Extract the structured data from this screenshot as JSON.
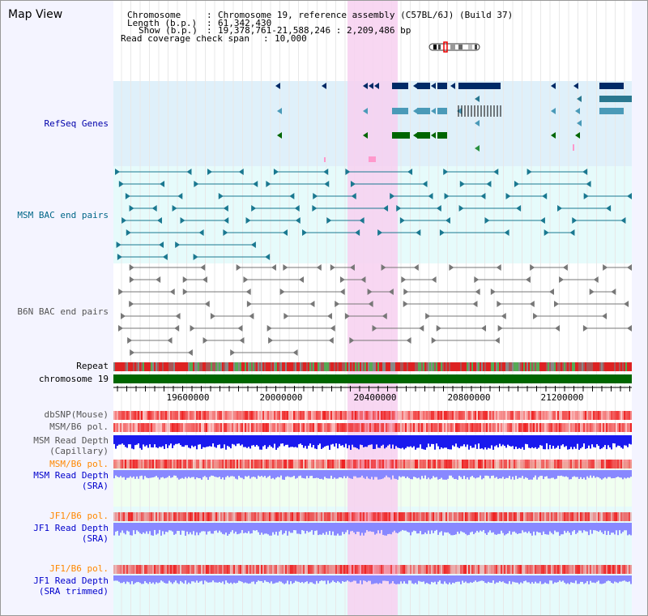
{
  "title": "Map View",
  "header": {
    "chromosome_label": "Chromosome",
    "chromosome_value": "Chromosome 19, reference assembly (C57BL/6J) (Build 37)",
    "length_label": "Length (b.p.)",
    "length_value": "61,342,430",
    "show_label": "Show (b.p.)",
    "show_value": "19,378,761-21,588,246 : 2,209,486 bp",
    "coverage_label": "Read coverage check span",
    "coverage_value": "10,000"
  },
  "tracks": {
    "refseq": "RefSeq Genes",
    "msm_bac": "MSM BAC end pairs",
    "b6n_bac": "B6N BAC end pairs",
    "repeat": "Repeat",
    "chromosome": "chromosome 19",
    "dbsnp": "dbSNP(Mouse)",
    "msm_b6_pol": "MSM/B6 pol.",
    "msm_depth_cap_1": "MSM Read Depth",
    "msm_depth_cap_2": "(Capillary)",
    "msm_b6_pol2": "MSM/B6 pol.",
    "msm_depth_sra_1": "MSM Read Depth",
    "msm_depth_sra_2": "(SRA)",
    "jf1_pol": "JF1/B6 pol.",
    "jf1_depth_sra_1": "JF1 Read Depth",
    "jf1_depth_sra_2": "(SRA)",
    "jf1_pol2": "JF1/B6 pol.",
    "jf1_depth_trim_1": "JF1 Read Depth",
    "jf1_depth_trim_2": "(SRA trimmed)"
  },
  "axis": {
    "ticks": [
      "19600000",
      "20000000",
      "20400000",
      "20800000",
      "21200000"
    ]
  },
  "colors": {
    "refseq_bg": "#dff0fa",
    "highlight": "#f7d0f0",
    "chromosome": "#006600",
    "depth_blue": "#1a1aee",
    "depth_light": "#8888ff",
    "snp_red": "#ee2222"
  }
}
